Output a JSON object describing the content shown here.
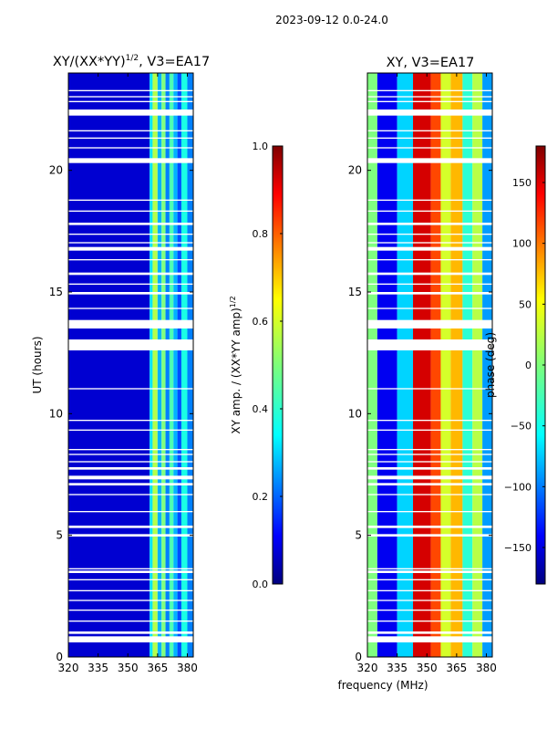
{
  "figure": {
    "suptitle": "2023-09-12 0.0-24.0",
    "xlabel": "frequency (MHz)"
  },
  "chart_data": [
    {
      "type": "heatmap",
      "title_main": "XY/(XX*YY)",
      "title_exp": "1/2",
      "title_rest": ", V3=EA17",
      "xlabel": "",
      "ylabel": "UT (hours)",
      "xlim": [
        320,
        383
      ],
      "ylim": [
        0,
        24
      ],
      "xticks": [
        320,
        335,
        350,
        365,
        380
      ],
      "yticks": [
        0,
        5,
        10,
        15,
        20
      ],
      "colorbar": {
        "label_main": "XY amp. / (XX*YY amp)",
        "label_exp": "1/2",
        "range": [
          0.0,
          1.0
        ],
        "ticks": [
          "0.0",
          "0.2",
          "0.4",
          "0.6",
          "0.8",
          "1.0"
        ],
        "tick_values": [
          0.0,
          0.2,
          0.4,
          0.6,
          0.8,
          1.0
        ]
      },
      "columns": [
        {
          "from": 320,
          "to": 361,
          "value": 0.08
        },
        {
          "from": 361,
          "to": 362.5,
          "value": 0.35
        },
        {
          "from": 362.5,
          "to": 365,
          "value": 0.55
        },
        {
          "from": 365,
          "to": 367,
          "value": 0.3
        },
        {
          "from": 367,
          "to": 369,
          "value": 0.5
        },
        {
          "from": 369,
          "to": 371,
          "value": 0.25
        },
        {
          "from": 371,
          "to": 373,
          "value": 0.45
        },
        {
          "from": 373,
          "to": 375,
          "value": 0.3
        },
        {
          "from": 375,
          "to": 377,
          "value": 0.2
        },
        {
          "from": 377,
          "to": 380,
          "value": 0.4
        },
        {
          "from": 380,
          "to": 383,
          "value": 0.25
        }
      ]
    },
    {
      "type": "heatmap",
      "title_main": "XY, V3=EA17",
      "xlabel": "",
      "ylabel": "",
      "xlim": [
        320,
        383
      ],
      "ylim": [
        0,
        24
      ],
      "xticks": [
        320,
        335,
        350,
        365,
        380
      ],
      "yticks": [
        0,
        5,
        10,
        15,
        20
      ],
      "colorbar": {
        "label_main": "phase (deg)",
        "range": [
          -180,
          180
        ],
        "ticks": [
          "150",
          "100",
          "50",
          "0",
          "−50",
          "−100",
          "−150"
        ],
        "tick_values": [
          150,
          100,
          50,
          0,
          -50,
          -100,
          -150
        ]
      },
      "columns": [
        {
          "from": 320,
          "to": 325,
          "value": 0
        },
        {
          "from": 325,
          "to": 335,
          "value": -140
        },
        {
          "from": 335,
          "to": 343,
          "value": -60
        },
        {
          "from": 343,
          "to": 352,
          "value": 150
        },
        {
          "from": 352,
          "to": 357,
          "value": 110
        },
        {
          "from": 357,
          "to": 362,
          "value": 30
        },
        {
          "from": 362,
          "to": 368,
          "value": 70
        },
        {
          "from": 368,
          "to": 373,
          "value": -30
        },
        {
          "from": 373,
          "to": 378,
          "value": 20
        },
        {
          "from": 378,
          "to": 383,
          "value": -80
        }
      ]
    }
  ],
  "flag_gaps": [
    [
      0.6,
      0.85
    ],
    [
      0.95,
      1.05
    ],
    [
      1.45,
      1.5
    ],
    [
      1.9,
      1.95
    ],
    [
      2.3,
      2.35
    ],
    [
      2.7,
      2.75
    ],
    [
      3.15,
      3.2
    ],
    [
      3.45,
      3.55
    ],
    [
      3.6,
      3.65
    ],
    [
      4.95,
      5.05
    ],
    [
      5.3,
      5.4
    ],
    [
      5.95,
      6.0
    ],
    [
      6.65,
      6.7
    ],
    [
      7.05,
      7.15
    ],
    [
      7.3,
      7.45
    ],
    [
      7.7,
      7.8
    ],
    [
      8.0,
      8.05
    ],
    [
      8.3,
      8.35
    ],
    [
      8.5,
      8.55
    ],
    [
      9.3,
      9.35
    ],
    [
      9.7,
      9.75
    ],
    [
      11.0,
      11.05
    ],
    [
      12.6,
      13.05
    ],
    [
      13.5,
      13.85
    ],
    [
      14.3,
      14.35
    ],
    [
      14.9,
      15.0
    ],
    [
      15.3,
      15.35
    ],
    [
      15.7,
      15.8
    ],
    [
      16.3,
      16.35
    ],
    [
      16.7,
      16.85
    ],
    [
      17.0,
      17.05
    ],
    [
      17.35,
      17.4
    ],
    [
      17.75,
      17.85
    ],
    [
      18.3,
      18.35
    ],
    [
      18.75,
      18.8
    ],
    [
      20.3,
      20.5
    ],
    [
      20.9,
      20.95
    ],
    [
      21.3,
      21.35
    ],
    [
      21.6,
      21.65
    ],
    [
      22.25,
      22.5
    ],
    [
      22.8,
      22.85
    ],
    [
      23.0,
      23.05
    ],
    [
      23.25,
      23.3
    ]
  ]
}
